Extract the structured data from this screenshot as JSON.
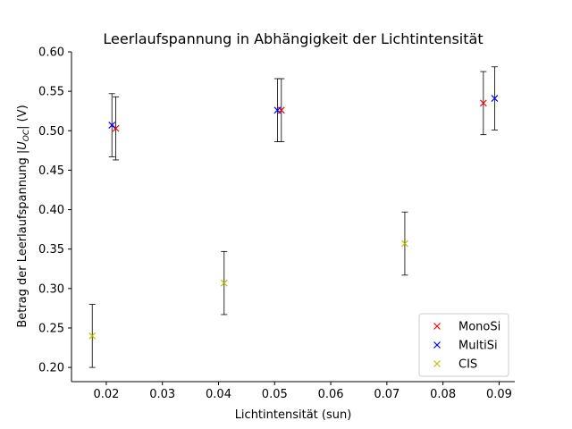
{
  "chart_data": {
    "type": "scatter",
    "title": "Leerlaufspannung in Abhängigkeit der Lichtintensität",
    "xlabel": "Lichtintensität (sun)",
    "ylabel": {
      "prefix": "Betrag der Leerlaufspannung |",
      "var": "U",
      "sub": "OC",
      "suffix": "| (V)"
    },
    "xlim": [
      0.0138,
      0.0928
    ],
    "ylim": [
      0.182,
      0.6
    ],
    "xticks": [
      {
        "v": 0.02,
        "label": "0.02"
      },
      {
        "v": 0.03,
        "label": "0.03"
      },
      {
        "v": 0.04,
        "label": "0.04"
      },
      {
        "v": 0.05,
        "label": "0.05"
      },
      {
        "v": 0.06,
        "label": "0.06"
      },
      {
        "v": 0.07,
        "label": "0.07"
      },
      {
        "v": 0.08,
        "label": "0.08"
      },
      {
        "v": 0.09,
        "label": "0.09"
      }
    ],
    "yticks": [
      {
        "v": 0.2,
        "label": "0.20"
      },
      {
        "v": 0.25,
        "label": "0.25"
      },
      {
        "v": 0.3,
        "label": "0.30"
      },
      {
        "v": 0.35,
        "label": "0.35"
      },
      {
        "v": 0.4,
        "label": "0.40"
      },
      {
        "v": 0.45,
        "label": "0.45"
      },
      {
        "v": 0.5,
        "label": "0.50"
      },
      {
        "v": 0.55,
        "label": "0.55"
      },
      {
        "v": 0.6,
        "label": "0.60"
      }
    ],
    "error": 0.04,
    "grid": false,
    "legend_position": "lower-right",
    "series": [
      {
        "name": "MonoSi",
        "color": "#ff0000",
        "marker": "x",
        "points": [
          {
            "x": 0.0217,
            "y": 0.503
          },
          {
            "x": 0.0512,
            "y": 0.526
          },
          {
            "x": 0.0872,
            "y": 0.535
          }
        ]
      },
      {
        "name": "MultiSi",
        "color": "#0000ff",
        "marker": "x",
        "points": [
          {
            "x": 0.021,
            "y": 0.507
          },
          {
            "x": 0.0505,
            "y": 0.526
          },
          {
            "x": 0.0892,
            "y": 0.541
          }
        ]
      },
      {
        "name": "CIS",
        "color": "#bfbf00",
        "marker": "x",
        "points": [
          {
            "x": 0.0175,
            "y": 0.24
          },
          {
            "x": 0.041,
            "y": 0.307
          },
          {
            "x": 0.0732,
            "y": 0.357
          }
        ]
      }
    ]
  }
}
